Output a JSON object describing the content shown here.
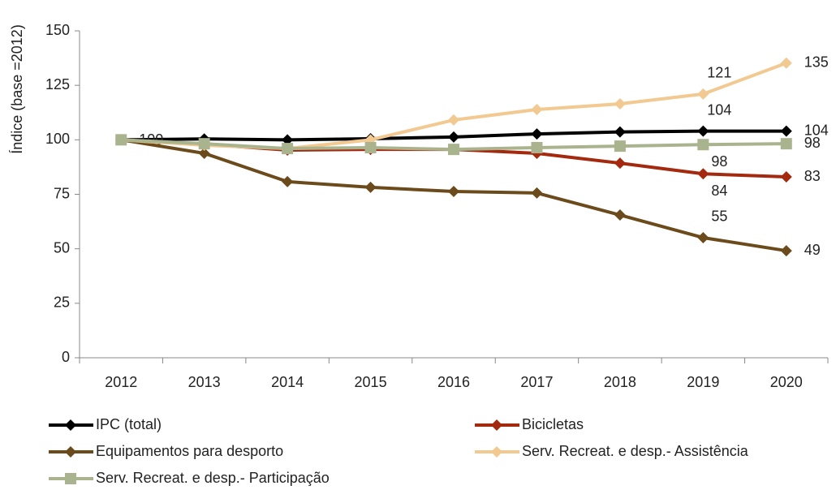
{
  "chart_data": {
    "type": "line",
    "y_label": "Índice (base =2012)",
    "categories": [
      "2012",
      "2013",
      "2014",
      "2015",
      "2016",
      "2017",
      "2018",
      "2019",
      "2020"
    ],
    "ylim": [
      0,
      150
    ],
    "yticks": [
      0,
      25,
      50,
      75,
      100,
      125,
      150
    ],
    "grid": false,
    "legend": "bottom",
    "series": [
      {
        "name": "IPC (total)",
        "color": "#000000",
        "marker": "diamond",
        "values": [
          100,
          100.4,
          100,
          100.5,
          101.3,
          102.7,
          103.6,
          104,
          104
        ],
        "value_labels": [
          "100",
          null,
          null,
          null,
          null,
          null,
          null,
          "104",
          "104"
        ]
      },
      {
        "name": "Bicicletas",
        "color": "#a3290f",
        "marker": "diamond",
        "values": [
          100,
          98,
          95.3,
          95.6,
          95.6,
          93.8,
          89.3,
          84.4,
          83
        ],
        "value_labels": [
          null,
          null,
          null,
          null,
          null,
          null,
          null,
          "84",
          "83"
        ]
      },
      {
        "name": "Equipamentos para desporto",
        "color": "#6b4a1c",
        "marker": "diamond",
        "values": [
          100,
          93.8,
          80.8,
          78.2,
          76.3,
          75.6,
          65.5,
          55.1,
          49.1
        ],
        "value_labels": [
          null,
          null,
          null,
          null,
          null,
          null,
          null,
          "55",
          "49"
        ]
      },
      {
        "name": "Serv. Recreat. e desp.- Assistência",
        "color": "#f1c991",
        "marker": "diamond",
        "values": [
          100,
          97.5,
          96,
          100,
          109.1,
          113.9,
          116.5,
          121,
          135.2
        ],
        "value_labels": [
          null,
          null,
          null,
          null,
          null,
          null,
          null,
          "121",
          "135"
        ]
      },
      {
        "name": "Serv. Recreat. e desp.- Participação",
        "color": "#a9b48f",
        "marker": "square",
        "values": [
          100,
          98.2,
          96,
          96.4,
          95.6,
          96.4,
          97.1,
          97.8,
          98.2
        ],
        "value_labels": [
          null,
          null,
          null,
          null,
          null,
          null,
          null,
          "98",
          "98"
        ]
      }
    ]
  }
}
